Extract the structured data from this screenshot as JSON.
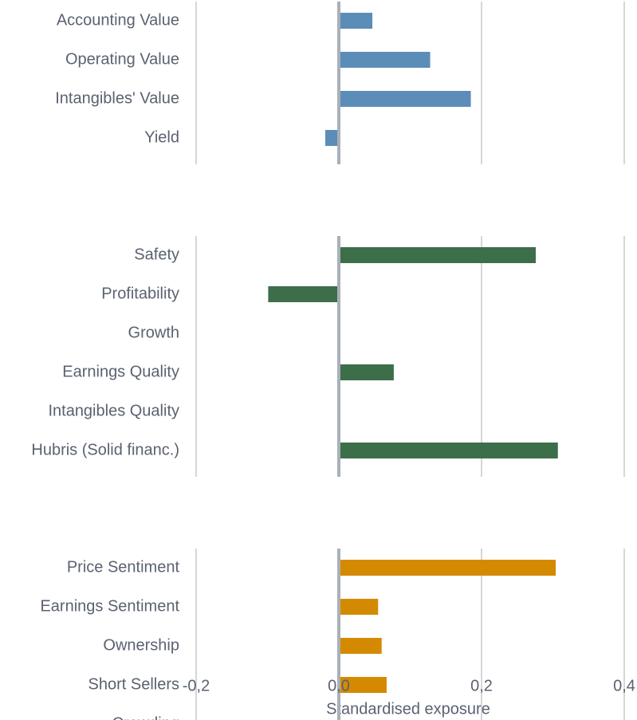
{
  "chart_data": {
    "type": "bar",
    "orientation": "horizontal",
    "xlabel": "Standardised exposure",
    "xlim": [
      -0.2,
      0.4
    ],
    "xticks": [
      {
        "value": -0.2,
        "label": "-0,2"
      },
      {
        "value": 0,
        "label": "0,0"
      },
      {
        "value": 0.2,
        "label": "0,2"
      },
      {
        "value": 0.4,
        "label": "0,4"
      }
    ],
    "grid": true,
    "groups": [
      {
        "color": "#5b8db8",
        "categories": [
          "Accounting Value",
          "Operating Value",
          "Intangibles' Value",
          "Yield"
        ],
        "values": [
          0.047,
          0.128,
          0.185,
          -0.019
        ]
      },
      {
        "color": "#3d6e4a",
        "categories": [
          "Safety",
          "Profitability",
          "Growth",
          "Earnings Quality",
          "Intangibles Quality",
          "Hubris (Solid financ.)"
        ],
        "values": [
          0.276,
          -0.099,
          null,
          0.077,
          null,
          0.307
        ]
      },
      {
        "color": "#d48a00",
        "categories": [
          "Price Sentiment",
          "Earnings Sentiment",
          "Ownership",
          "Short Sellers",
          "Crowding"
        ],
        "values": [
          0.304,
          0.055,
          0.06,
          0.067,
          null
        ]
      }
    ]
  }
}
